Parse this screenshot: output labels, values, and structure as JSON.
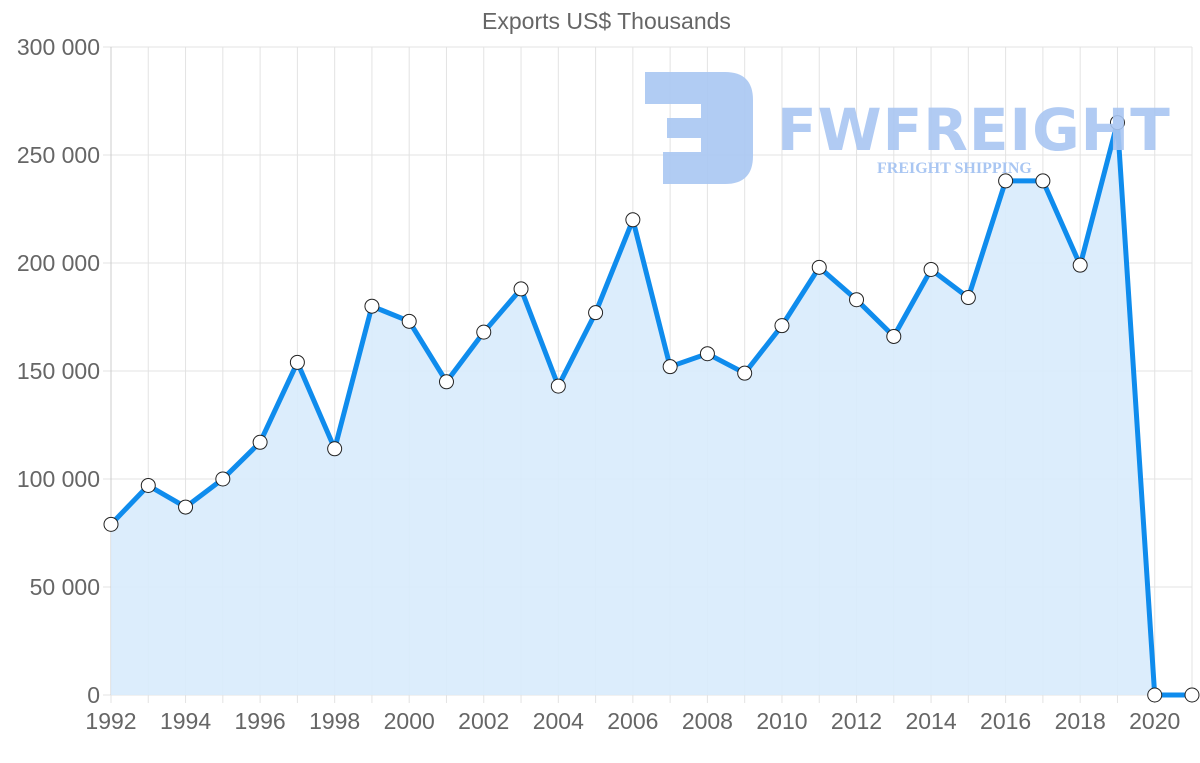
{
  "chart": {
    "title": "Exports US$ Thousands",
    "colors": {
      "line": "#0f8ced",
      "fill": "#d8ebfc",
      "grid": "#e3e3e3",
      "text": "#666666",
      "point_fill": "#ffffff",
      "point_stroke": "#222222"
    }
  },
  "watermark": {
    "brand": "FWFREIGHT",
    "tagline": "FREIGHT SHIPPING",
    "color": "#a9c6f2"
  },
  "chart_data": {
    "type": "area",
    "title": "Exports US$ Thousands",
    "xlabel": "",
    "ylabel": "",
    "ylim": [
      0,
      300000
    ],
    "yticks": [
      0,
      50000,
      100000,
      150000,
      200000,
      250000,
      300000
    ],
    "ytick_labels": [
      "0",
      "50 000",
      "100 000",
      "150 000",
      "200 000",
      "250 000",
      "300 000"
    ],
    "xtick_labels": [
      "1992",
      "1994",
      "1996",
      "1998",
      "2000",
      "2002",
      "2004",
      "2006",
      "2008",
      "2010",
      "2012",
      "2014",
      "2016",
      "2018",
      "2020"
    ],
    "grid": true,
    "legend": "none",
    "x": [
      1992,
      1993,
      1994,
      1995,
      1996,
      1997,
      1998,
      1999,
      2000,
      2001,
      2002,
      2003,
      2004,
      2005,
      2006,
      2007,
      2008,
      2009,
      2010,
      2011,
      2012,
      2013,
      2014,
      2015,
      2016,
      2017,
      2018,
      2019,
      2020,
      2021
    ],
    "series": [
      {
        "name": "Exports US$ Thousands",
        "values": [
          79000,
          97000,
          87000,
          100000,
          117000,
          154000,
          114000,
          180000,
          173000,
          145000,
          168000,
          188000,
          143000,
          177000,
          220000,
          152000,
          158000,
          149000,
          171000,
          198000,
          183000,
          166000,
          197000,
          184000,
          238000,
          238000,
          199000,
          265000,
          0,
          0
        ]
      }
    ]
  }
}
